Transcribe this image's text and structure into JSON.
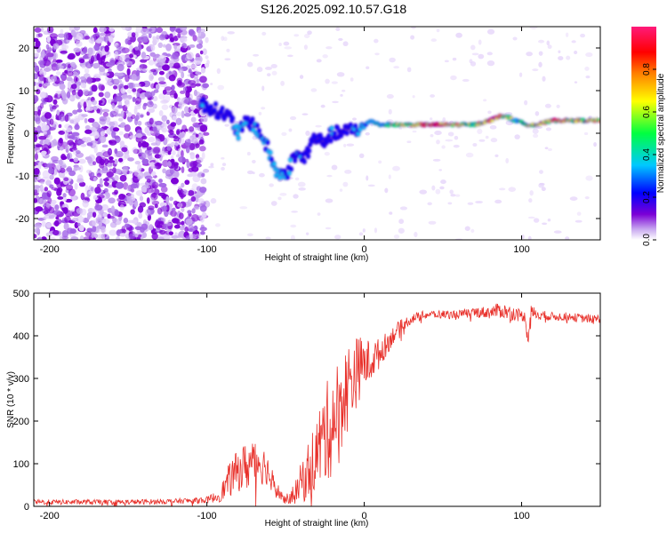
{
  "title": "S126.2025.092.10.57.G18",
  "chart_data": [
    {
      "type": "heatmap",
      "xlabel": "Height of straight line (km)",
      "ylabel": "Frequency (Hz)",
      "xlim": [
        -210,
        150
      ],
      "ylim": [
        -25,
        25
      ],
      "x_ticks": [
        -200,
        -100,
        0,
        100
      ],
      "y_ticks": [
        -20,
        -10,
        0,
        10,
        20
      ],
      "colorbar": {
        "label": "Normalized spectral amplitude",
        "range": [
          0,
          1
        ],
        "ticks": [
          "0.0",
          "0.2",
          "0.4",
          "0.6",
          "0.8"
        ],
        "colors": [
          "#ffffff",
          "#c8a8f0",
          "#7b00d6",
          "#0000ff",
          "#00c8ff",
          "#00ff40",
          "#ffff00",
          "#ff8000",
          "#ff0000",
          "#ff1a7a"
        ]
      },
      "ridge": {
        "x": [
          -104,
          -98,
          -92,
          -86,
          -80,
          -74,
          -68,
          -62,
          -56,
          -50,
          -44,
          -38,
          -32,
          -26,
          -20,
          -14,
          -8,
          -2,
          4,
          10,
          20,
          30,
          40,
          50,
          60,
          70,
          80,
          86,
          90,
          96,
          104,
          110,
          120,
          130,
          140,
          150
        ],
        "freq": [
          7,
          6,
          5,
          4,
          0,
          3,
          1,
          -3,
          -9,
          -10,
          -5,
          -6,
          -1,
          -2,
          0,
          0,
          1,
          1,
          3,
          2,
          2,
          2,
          2,
          2,
          2,
          2,
          3,
          4,
          4,
          3,
          2,
          2,
          3,
          3,
          3,
          3
        ],
        "amp": [
          0.35,
          0.3,
          0.3,
          0.3,
          0.4,
          0.3,
          0.35,
          0.35,
          0.45,
          0.35,
          0.35,
          0.3,
          0.3,
          0.25,
          0.35,
          0.3,
          0.3,
          0.4,
          0.45,
          0.5,
          0.6,
          0.7,
          0.9,
          0.85,
          0.7,
          0.6,
          0.9,
          0.95,
          0.6,
          0.55,
          0.6,
          0.7,
          0.8,
          0.75,
          0.7,
          0.7
        ]
      },
      "noise_region_x": [
        -210,
        -100
      ]
    },
    {
      "type": "line",
      "xlabel": "Height of straight line (km)",
      "ylabel": "SNR (10 * v/v)",
      "xlim": [
        -210,
        150
      ],
      "ylim": [
        0,
        500
      ],
      "x_ticks": [
        -200,
        -100,
        0,
        100
      ],
      "y_ticks": [
        0,
        100,
        200,
        300,
        400,
        500
      ],
      "color": "#e8302a",
      "series": [
        {
          "x": [
            -210,
            -180,
            -150,
            -120,
            -100,
            -92,
            -86,
            -80,
            -74,
            -68,
            -62,
            -56,
            -50,
            -44,
            -38,
            -32,
            -26,
            -20,
            -14,
            -8,
            -2,
            4,
            10,
            16,
            22,
            30,
            40,
            50,
            60,
            70,
            80,
            86,
            92,
            98,
            102,
            104,
            106,
            110,
            120,
            130,
            140,
            150
          ],
          "y": [
            10,
            10,
            10,
            12,
            15,
            25,
            60,
            85,
            95,
            110,
            90,
            40,
            15,
            30,
            70,
            110,
            160,
            200,
            250,
            300,
            330,
            340,
            360,
            390,
            420,
            440,
            450,
            450,
            450,
            455,
            455,
            460,
            455,
            450,
            445,
            400,
            455,
            450,
            445,
            445,
            440,
            440
          ],
          "spread": [
            6,
            6,
            6,
            6,
            8,
            15,
            40,
            50,
            60,
            60,
            40,
            20,
            10,
            25,
            60,
            80,
            110,
            130,
            110,
            100,
            70,
            50,
            35,
            25,
            15,
            12,
            10,
            10,
            10,
            12,
            15,
            18,
            18,
            15,
            12,
            30,
            18,
            12,
            10,
            10,
            10,
            10
          ]
        }
      ]
    }
  ]
}
